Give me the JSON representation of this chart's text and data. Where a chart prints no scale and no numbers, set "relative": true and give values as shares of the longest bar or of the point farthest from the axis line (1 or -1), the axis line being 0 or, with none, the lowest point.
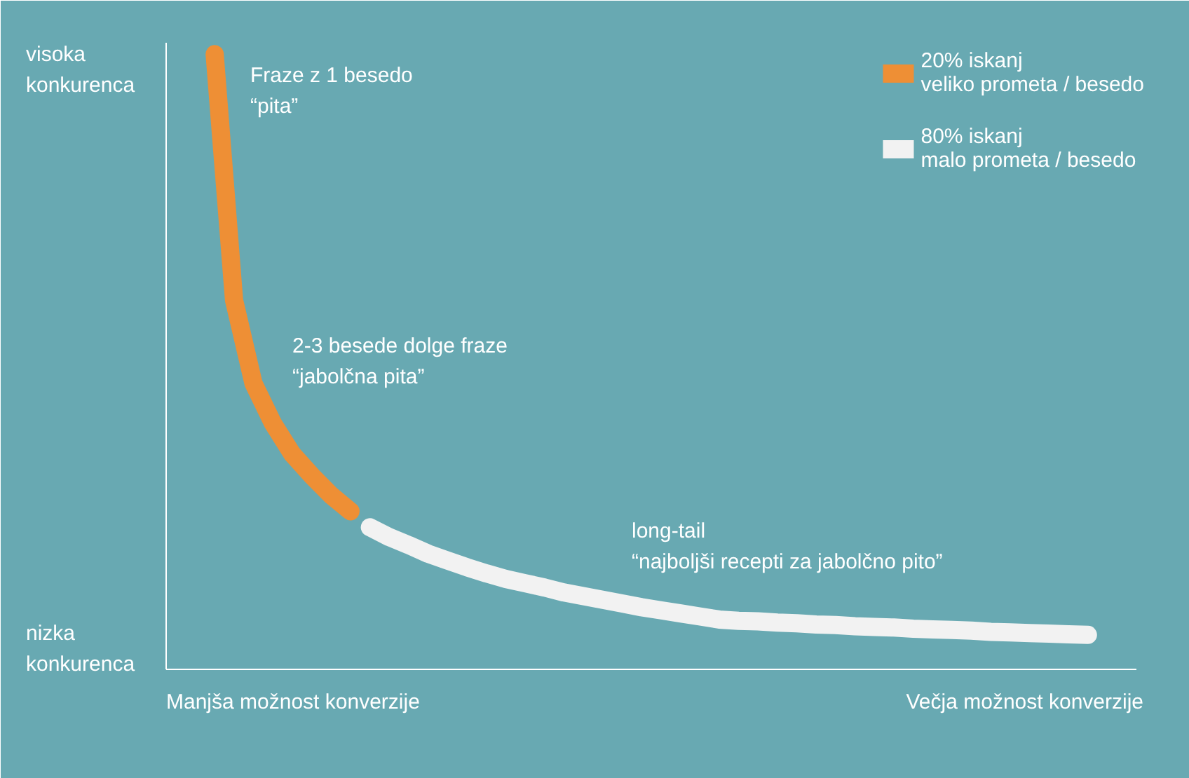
{
  "chart_data": {
    "type": "line",
    "relative": true,
    "legend": "top right",
    "categories": [
      null,
      null,
      null,
      null,
      null,
      null,
      null,
      null,
      null,
      null,
      null,
      null,
      null,
      null,
      null,
      null,
      null,
      null,
      null,
      null,
      null,
      null,
      null,
      null,
      null,
      null,
      null,
      null,
      null,
      null,
      null,
      null,
      null,
      null,
      null,
      null,
      null,
      null,
      null,
      null,
      null,
      null,
      null,
      null,
      null,
      null,
      null,
      null,
      null,
      null
    ],
    "series": [
      {
        "name": "20% iskanj\nveliko prometa / besedo",
        "color": "#ee8f35",
        "values": [
          null,
          null,
          1.0,
          0.6,
          0.465,
          0.4,
          0.35,
          0.315,
          0.283,
          0.257,
          null,
          null,
          null,
          null,
          null,
          null,
          null,
          null,
          null,
          null,
          null,
          null,
          null,
          null,
          null,
          null,
          null,
          null,
          null,
          null,
          null,
          null,
          null,
          null,
          null,
          null,
          null,
          null,
          null,
          null,
          null,
          null,
          null,
          null,
          null,
          null,
          null,
          null,
          null,
          null
        ]
      },
      {
        "name": "80% iskanj\nmalo prometa / besedo",
        "color": "#f2f2f2",
        "values": [
          null,
          null,
          null,
          null,
          null,
          null,
          null,
          null,
          null,
          null,
          0.231,
          0.215,
          0.202,
          0.188,
          0.177,
          0.166,
          0.156,
          0.147,
          0.14,
          0.133,
          0.125,
          0.119,
          0.113,
          0.107,
          0.101,
          0.096,
          0.091,
          0.086,
          0.081,
          0.079,
          0.078,
          0.076,
          0.075,
          0.073,
          0.072,
          0.07,
          0.069,
          0.068,
          0.066,
          0.065,
          0.064,
          0.063,
          0.061,
          0.06,
          0.059,
          0.058,
          0.057,
          0.056,
          null,
          null
        ]
      }
    ],
    "annotations": [
      "visoka\nkonkurenca",
      "nizka\nkonkurenca",
      "Manjša možnost konverzije",
      "Večja možnost konverzije",
      "Fraze z 1 besedo\n  “pita”",
      "2-3 besede dolge fraze\n“jabolčna pita”",
      "long-tail\n“najboljši recepti za jabolčno pito”"
    ]
  }
}
